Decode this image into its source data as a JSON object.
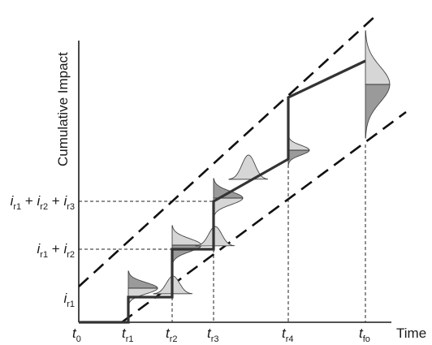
{
  "y_axis_title": "Cumulative Impact",
  "x_axis_title": "Time",
  "x_ticks": [
    {
      "main": "t",
      "sub": "0"
    },
    {
      "main": "t",
      "sub": "r1"
    },
    {
      "main": "t",
      "sub": "r2"
    },
    {
      "main": "t",
      "sub": "r3"
    },
    {
      "main": "t",
      "sub": "r4"
    },
    {
      "main": "t",
      "sub": "fo"
    }
  ],
  "y_ticks": [
    {
      "parts": [
        {
          "main": "i",
          "sub": "r1"
        }
      ]
    },
    {
      "parts": [
        {
          "main": "i",
          "sub": "r1"
        },
        {
          "op": "+"
        },
        {
          "main": "i",
          "sub": "r2"
        }
      ]
    },
    {
      "parts": [
        {
          "main": "i",
          "sub": "r1"
        },
        {
          "op": "+"
        },
        {
          "main": "i",
          "sub": "r2"
        },
        {
          "op": "+"
        },
        {
          "main": "i",
          "sub": "r3"
        }
      ]
    }
  ],
  "colors": {
    "step_path": "#333333",
    "bounds": "#111111",
    "dark_fill": "#9a9a9a",
    "light_fill": "#d6d6d6"
  }
}
